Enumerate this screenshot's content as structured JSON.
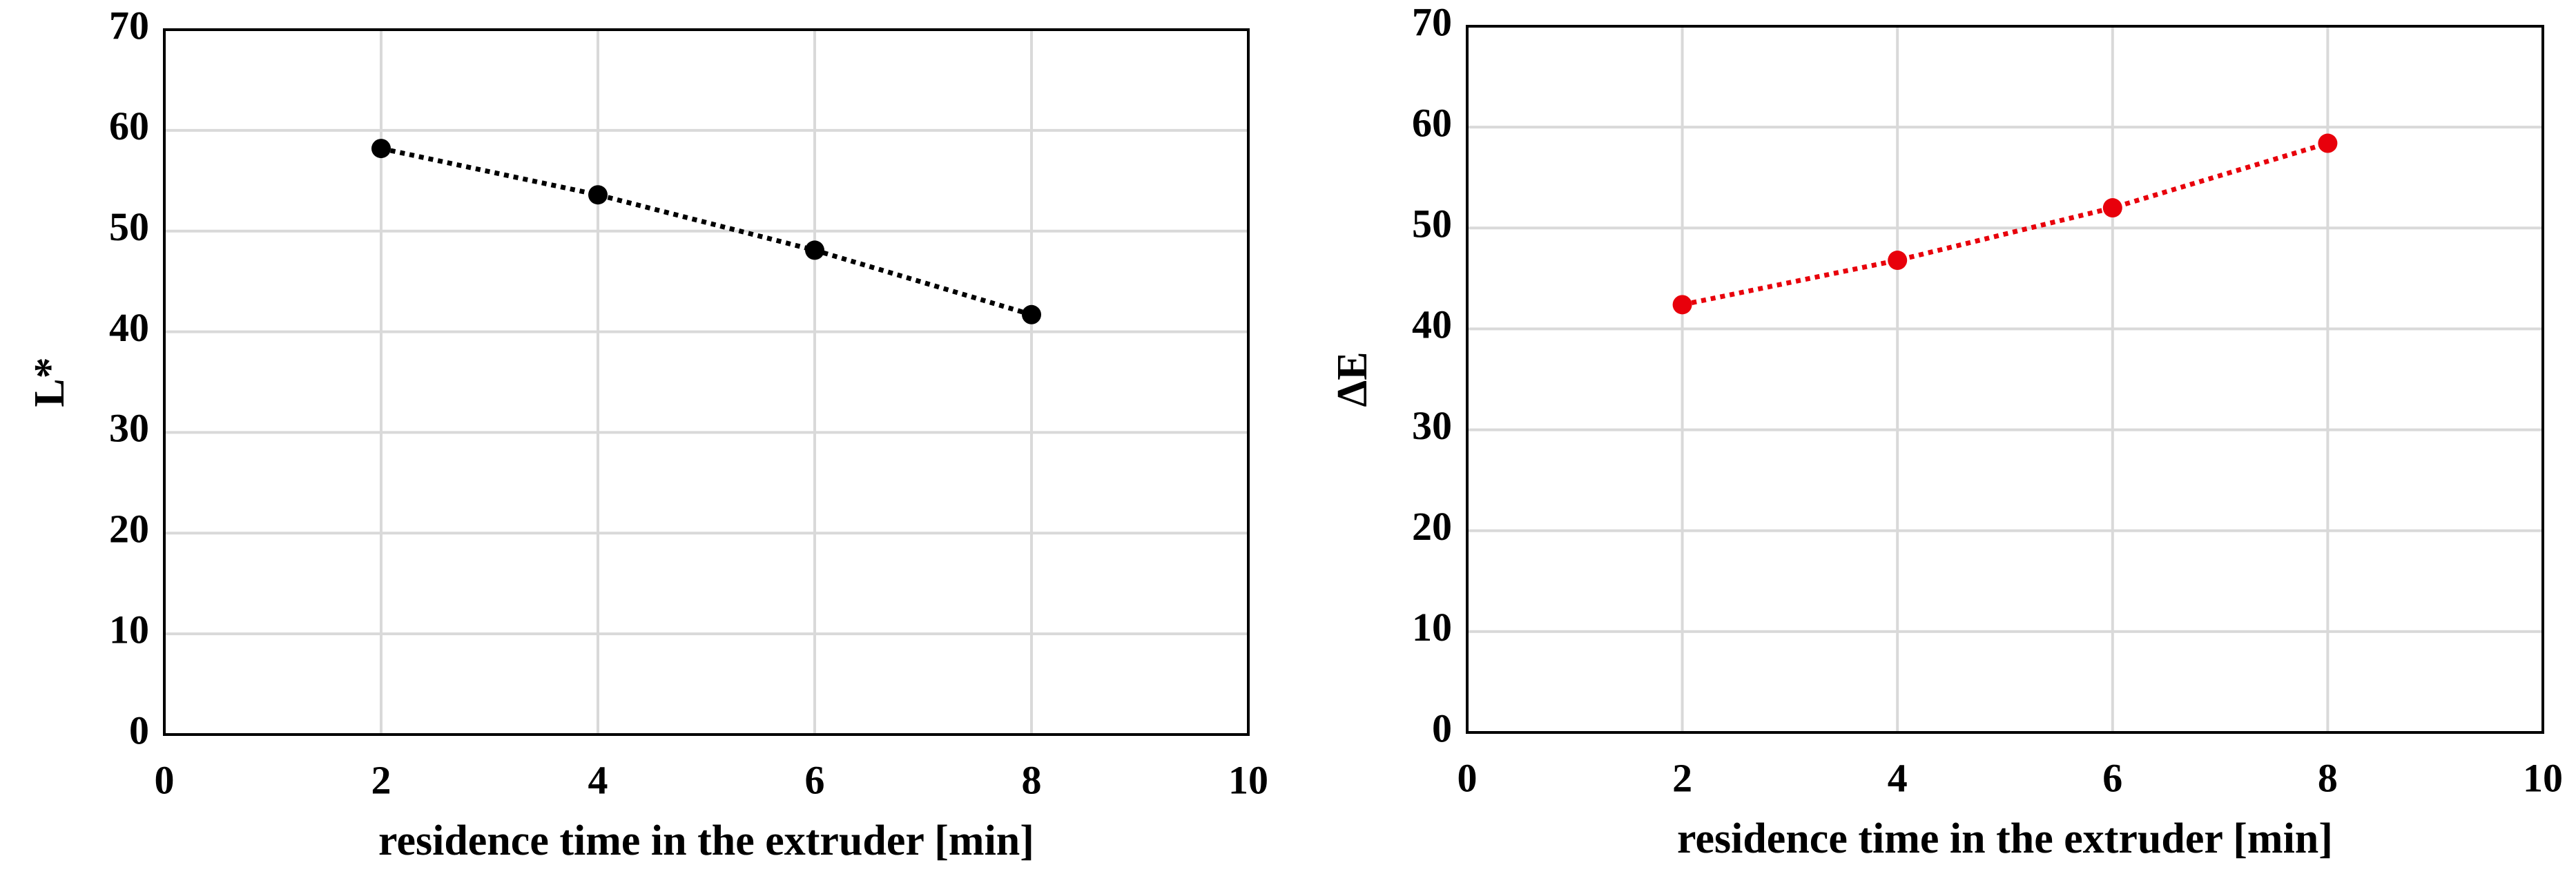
{
  "chart_data": [
    {
      "type": "line",
      "x": [
        2,
        4,
        6,
        8
      ],
      "series": [
        {
          "color": "#000000",
          "values": [
            58.2,
            53.6,
            48.1,
            41.7
          ]
        }
      ],
      "x_label": "residence time in the extruder [min]",
      "y_label": "L*",
      "xlim": [
        0,
        10
      ],
      "xticks": [
        0,
        2,
        4,
        6,
        8,
        10
      ],
      "ylim": [
        0,
        70
      ],
      "yticks": [
        0,
        10,
        20,
        30,
        40,
        50,
        60,
        70
      ],
      "grid": true,
      "line_style": "dotted"
    },
    {
      "type": "line",
      "x": [
        2,
        4,
        6,
        8
      ],
      "series": [
        {
          "color": "#e8000b",
          "values": [
            42.4,
            46.8,
            52.0,
            58.4
          ]
        }
      ],
      "x_label": "residence time in the extruder [min]",
      "y_label": "ΔE",
      "xlim": [
        0,
        10
      ],
      "xticks": [
        0,
        2,
        4,
        6,
        8,
        10
      ],
      "ylim": [
        0,
        70
      ],
      "yticks": [
        0,
        10,
        20,
        30,
        40,
        50,
        60,
        70
      ],
      "grid": true,
      "line_style": "dotted"
    }
  ]
}
